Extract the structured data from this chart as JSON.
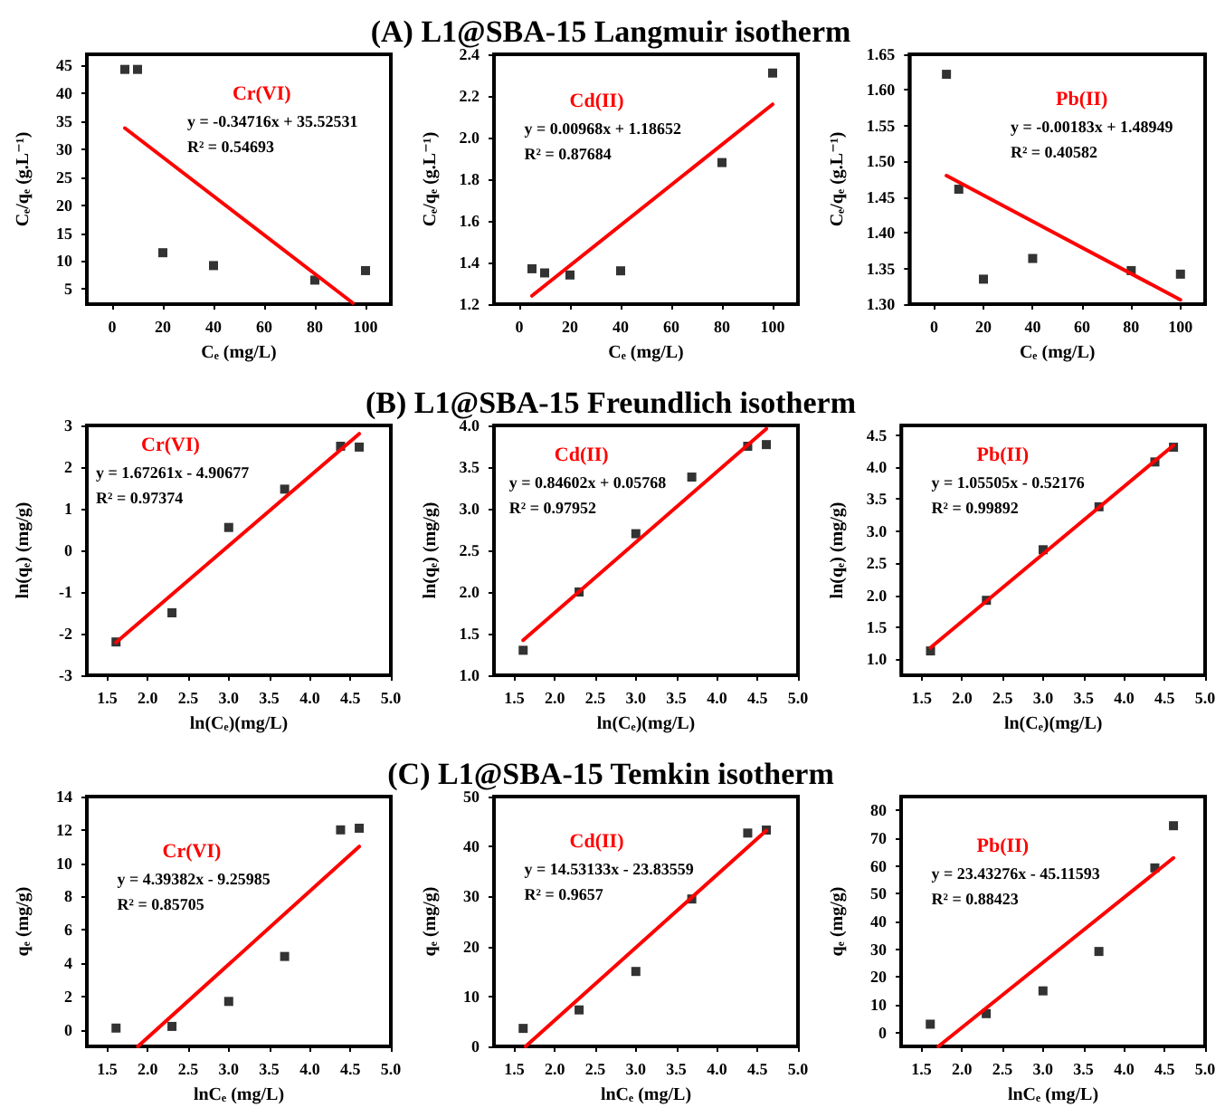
{
  "chart_data": [
    {
      "type": "scatter",
      "xlabel": "Cₑ (mg/L)",
      "ylabel": "Cₑ/qₑ (g.L⁻¹)",
      "xlim": [
        -10,
        110
      ],
      "xticks": [
        0,
        20,
        40,
        60,
        80,
        100
      ],
      "ylim": [
        2.3,
        47
      ],
      "yticks": [
        5,
        10,
        15,
        20,
        25,
        30,
        35,
        40,
        45
      ],
      "annotations": [
        "y = -0.34716x + 35.52531",
        "R² = 0.54693"
      ],
      "series": [
        {
          "type": "scatter",
          "marker": "square",
          "color": "#000000",
          "x": [
            5,
            10,
            20,
            40,
            80,
            100
          ],
          "values": [
            44.3,
            44.3,
            11.5,
            9.2,
            6.6,
            8.3
          ]
        },
        {
          "type": "line",
          "name": "Cr(VI)",
          "color": "#ff0000",
          "line_style": "solid",
          "x": [
            5,
            95
          ],
          "values": [
            33.8,
            2.5
          ]
        }
      ]
    },
    {
      "type": "scatter",
      "title": "(A) L1@SBA-15 Langmuir isotherm",
      "xlabel": "Cₑ (mg/L)",
      "ylabel": "Cₑ/qₑ (g.L⁻¹)",
      "xlim": [
        -10,
        110
      ],
      "xticks": [
        0,
        20,
        40,
        60,
        80,
        100
      ],
      "ylim": [
        1.2,
        2.4
      ],
      "yticks": [
        1.2,
        1.4,
        1.6,
        1.8,
        {
          "value": 2,
          "label": "2.0"
        },
        2.2,
        2.4
      ],
      "annotations": [
        "y = 0.00968x + 1.18652",
        "R² = 0.87684"
      ],
      "series": [
        {
          "type": "scatter",
          "marker": "square",
          "color": "#000000",
          "x": [
            5,
            10,
            20,
            40,
            80,
            100
          ],
          "values": [
            1.37,
            1.35,
            1.34,
            1.36,
            1.88,
            2.31
          ]
        },
        {
          "type": "line",
          "name": "Cd(II)",
          "color": "#ff0000",
          "line_style": "solid",
          "x": [
            5,
            100
          ],
          "values": [
            1.24,
            2.16
          ]
        }
      ]
    },
    {
      "type": "scatter",
      "xlabel": "Cₑ (mg/L)",
      "ylabel": "Cₑ/qₑ (g.L⁻¹)",
      "xlim": [
        -10,
        110
      ],
      "xticks": [
        0,
        20,
        40,
        60,
        80,
        100
      ],
      "ylim": [
        1.3,
        1.65
      ],
      "yticks": [
        {
          "value": 1.3,
          "label": "1.30"
        },
        1.35,
        {
          "value": 1.4,
          "label": "1.40"
        },
        1.45,
        {
          "value": 1.5,
          "label": "1.50"
        },
        1.55,
        {
          "value": 1.6,
          "label": "1.60"
        },
        1.65
      ],
      "annotations": [
        "y = -0.00183x + 1.48949",
        "R² = 0.40582"
      ],
      "series": [
        {
          "type": "scatter",
          "marker": "square",
          "color": "#000000",
          "x": [
            5,
            10,
            20,
            40,
            80,
            100
          ],
          "values": [
            1.622,
            1.461,
            1.335,
            1.364,
            1.347,
            1.342
          ]
        },
        {
          "type": "line",
          "name": "Pb(II)",
          "color": "#ff0000",
          "line_style": "solid",
          "x": [
            5,
            100
          ],
          "values": [
            1.48,
            1.306
          ]
        }
      ]
    },
    {
      "type": "scatter",
      "xlabel": "ln(Cₑ)(mg/L)",
      "ylabel": "ln(qₑ) (mg/g)",
      "xlim": [
        1.25,
        5
      ],
      "xticks": [
        1.5,
        {
          "value": 2,
          "label": "2.0"
        },
        2.5,
        {
          "value": 3,
          "label": "3.0"
        },
        3.5,
        {
          "value": 4,
          "label": "4.0"
        },
        4.5,
        {
          "value": 5,
          "label": "5.0"
        }
      ],
      "ylim": [
        -3,
        3
      ],
      "yticks": [
        -3,
        -2,
        -1,
        0,
        1,
        2,
        3
      ],
      "annotations": [
        "y = 1.67261x - 4.90677",
        "R² = 0.97374"
      ],
      "series": [
        {
          "type": "scatter",
          "marker": "square",
          "color": "#000000",
          "x": [
            1.61,
            2.3,
            3,
            3.69,
            4.38,
            4.61
          ],
          "values": [
            -2.2,
            -1.5,
            0.55,
            1.47,
            2.5,
            2.48
          ]
        },
        {
          "type": "line",
          "name": "Cr(VI)",
          "color": "#ff0000",
          "line_style": "solid",
          "x": [
            1.61,
            4.61
          ],
          "values": [
            -2.21,
            2.8
          ]
        }
      ]
    },
    {
      "type": "scatter",
      "title": "(B) L1@SBA-15 Freundlich isotherm",
      "xlabel": "ln(Cₑ)(mg/L)",
      "ylabel": "ln(qₑ) (mg/g)",
      "xlim": [
        1.25,
        5
      ],
      "xticks": [
        1.5,
        {
          "value": 2,
          "label": "2.0"
        },
        2.5,
        {
          "value": 3,
          "label": "3.0"
        },
        3.5,
        {
          "value": 4,
          "label": "4.0"
        },
        4.5,
        {
          "value": 5,
          "label": "5.0"
        }
      ],
      "ylim": [
        1,
        4
      ],
      "yticks": [
        {
          "value": 1,
          "label": "1.0"
        },
        1.5,
        {
          "value": 2,
          "label": "2.0"
        },
        2.5,
        {
          "value": 3,
          "label": "3.0"
        },
        3.5,
        {
          "value": 4,
          "label": "4.0"
        }
      ],
      "annotations": [
        "y = 0.84602x + 0.05768",
        "R² = 0.97952"
      ],
      "series": [
        {
          "type": "scatter",
          "marker": "square",
          "color": "#000000",
          "x": [
            1.61,
            2.3,
            3,
            3.69,
            4.38,
            4.61
          ],
          "values": [
            1.3,
            2,
            2.7,
            3.38,
            3.75,
            3.77
          ]
        },
        {
          "type": "line",
          "name": "Cd(II)",
          "color": "#ff0000",
          "line_style": "solid",
          "x": [
            1.61,
            4.61
          ],
          "values": [
            1.42,
            3.96
          ]
        }
      ]
    },
    {
      "type": "scatter",
      "xlabel": "ln(Cₑ)(mg/L)",
      "ylabel": "ln(qₑ) (mg/g)",
      "xlim": [
        1.25,
        5
      ],
      "xticks": [
        1.5,
        {
          "value": 2,
          "label": "2.0"
        },
        2.5,
        {
          "value": 3,
          "label": "3.0"
        },
        3.5,
        {
          "value": 4,
          "label": "4.0"
        },
        4.5,
        {
          "value": 5,
          "label": "5.0"
        }
      ],
      "ylim": [
        0.75,
        4.65
      ],
      "yticks": [
        {
          "value": 1,
          "label": "1.0"
        },
        1.5,
        {
          "value": 2,
          "label": "2.0"
        },
        2.5,
        {
          "value": 3,
          "label": "3.0"
        },
        3.5,
        {
          "value": 4,
          "label": "4.0"
        },
        4.5
      ],
      "annotations": [
        "y = 1.05505x - 0.52176",
        "R² = 0.99892"
      ],
      "series": [
        {
          "type": "scatter",
          "marker": "square",
          "color": "#000000",
          "x": [
            1.61,
            2.3,
            3,
            3.69,
            4.38,
            4.61
          ],
          "values": [
            1.13,
            1.92,
            2.71,
            3.38,
            4.08,
            4.31
          ]
        },
        {
          "type": "line",
          "name": "Pb(II)",
          "color": "#ff0000",
          "line_style": "solid",
          "x": [
            1.61,
            4.61
          ],
          "values": [
            1.18,
            4.34
          ]
        }
      ]
    },
    {
      "type": "scatter",
      "xlabel": "lnCₑ (mg/L)",
      "ylabel": "qₑ (mg/g)",
      "xlim": [
        1.25,
        5
      ],
      "xticks": [
        1.5,
        {
          "value": 2,
          "label": "2.0"
        },
        2.5,
        {
          "value": 3,
          "label": "3.0"
        },
        3.5,
        {
          "value": 4,
          "label": "4.0"
        },
        4.5,
        {
          "value": 5,
          "label": "5.0"
        }
      ],
      "ylim": [
        -1,
        14
      ],
      "yticks": [
        0,
        2,
        4,
        6,
        8,
        10,
        12,
        14
      ],
      "annotations": [
        "y = 4.39382x - 9.25985",
        "R² = 0.85705"
      ],
      "series": [
        {
          "type": "scatter",
          "marker": "square",
          "color": "#000000",
          "x": [
            1.61,
            2.3,
            3,
            3.69,
            4.38,
            4.61
          ],
          "values": [
            0.1,
            0.2,
            1.7,
            4.4,
            12,
            12.1
          ]
        },
        {
          "type": "line",
          "name": "Cr(VI)",
          "color": "#ff0000",
          "line_style": "solid",
          "x": [
            1.88,
            4.61
          ],
          "values": [
            -1,
            11
          ]
        }
      ]
    },
    {
      "type": "scatter",
      "title": "(C) L1@SBA-15 Temkin isotherm",
      "xlabel": "lnCₑ (mg/L)",
      "ylabel": "qₑ (mg/g)",
      "xlim": [
        1.25,
        5
      ],
      "xticks": [
        1.5,
        {
          "value": 2,
          "label": "2.0"
        },
        2.5,
        {
          "value": 3,
          "label": "3.0"
        },
        3.5,
        {
          "value": 4,
          "label": "4.0"
        },
        4.5,
        {
          "value": 5,
          "label": "5.0"
        }
      ],
      "ylim": [
        0,
        50
      ],
      "yticks": [
        0,
        10,
        20,
        30,
        40,
        50
      ],
      "annotations": [
        "y = 14.53133x - 23.83559",
        "R² = 0.9657"
      ],
      "series": [
        {
          "type": "scatter",
          "marker": "square",
          "color": "#000000",
          "x": [
            1.61,
            2.3,
            3,
            3.69,
            4.38,
            4.61
          ],
          "values": [
            3.6,
            7.3,
            15,
            29.5,
            42.7,
            43.3
          ]
        },
        {
          "type": "line",
          "name": "Cd(II)",
          "color": "#ff0000",
          "line_style": "solid",
          "x": [
            1.64,
            4.61
          ],
          "values": [
            0,
            43.2
          ]
        }
      ]
    },
    {
      "type": "scatter",
      "xlabel": "lnCₑ (mg/L)",
      "ylabel": "qₑ (mg/g)",
      "xlim": [
        1.25,
        5
      ],
      "xticks": [
        1.5,
        {
          "value": 2,
          "label": "2.0"
        },
        2.5,
        {
          "value": 3,
          "label": "3.0"
        },
        3.5,
        {
          "value": 4,
          "label": "4.0"
        },
        4.5,
        {
          "value": 5,
          "label": "5.0"
        }
      ],
      "ylim": [
        -5,
        85
      ],
      "yticks": [
        0,
        10,
        20,
        30,
        40,
        50,
        60,
        70,
        80
      ],
      "annotations": [
        "y = 23.43276x - 45.11593",
        "R² = 0.88423"
      ],
      "series": [
        {
          "type": "scatter",
          "marker": "square",
          "color": "#000000",
          "x": [
            1.61,
            2.3,
            3,
            3.69,
            4.38,
            4.61
          ],
          "values": [
            3,
            6.8,
            15,
            29.2,
            59.3,
            74.5
          ]
        },
        {
          "type": "line",
          "name": "Pb(II)",
          "color": "#ff0000",
          "line_style": "solid",
          "x": [
            1.71,
            4.61
          ],
          "values": [
            -5,
            62.9
          ]
        }
      ]
    }
  ]
}
